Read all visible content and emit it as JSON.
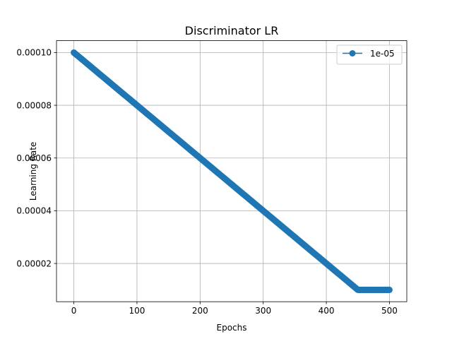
{
  "chart_data": {
    "type": "line",
    "title": "Discriminator LR",
    "xlabel": "Epochs",
    "ylabel": "Learning Rate",
    "xlim": [
      -27.5,
      527.5
    ],
    "ylim": [
      5.5e-06,
      0.0001045
    ],
    "xticks": [
      0,
      100,
      200,
      300,
      400,
      500
    ],
    "xtick_labels": [
      "0",
      "100",
      "200",
      "300",
      "400",
      "500"
    ],
    "yticks": [
      2e-05,
      4e-05,
      6e-05,
      8e-05,
      0.0001
    ],
    "ytick_labels": [
      "0.00002",
      "0.00004",
      "0.00006",
      "0.00008",
      "0.00010"
    ],
    "grid": true,
    "legend_position": "upper right",
    "series": [
      {
        "name": "1e-05",
        "color": "#1f77b4",
        "marker": "circle",
        "description": "Linear decay from 0.0001 at epoch 0 to 0.00001 at epoch 450, then constant 0.00001 through epoch 500",
        "x_start": 0,
        "x_end": 500,
        "step": 1,
        "start_value": 0.0001,
        "floor_value": 1e-05,
        "floor_epoch": 450
      }
    ]
  }
}
